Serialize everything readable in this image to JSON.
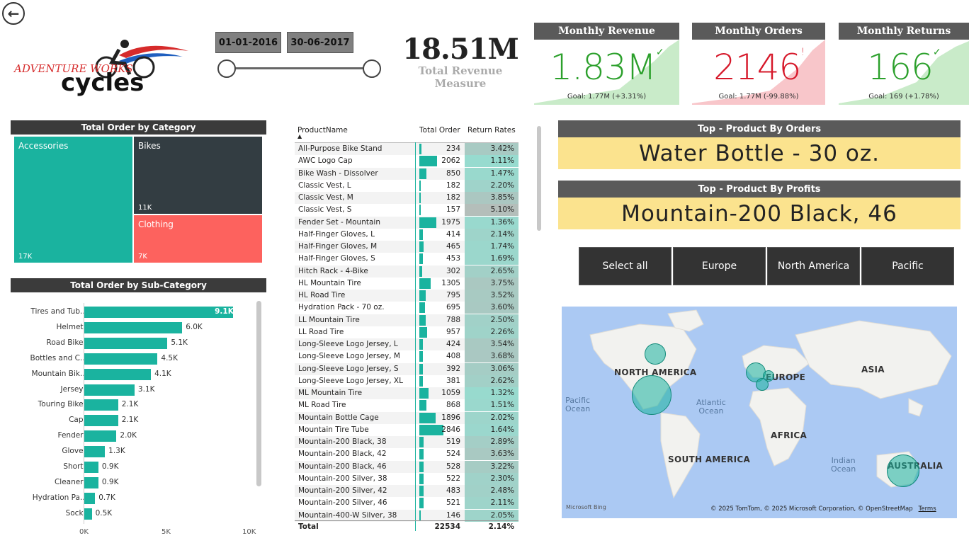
{
  "dates": {
    "start": "01-01-2016",
    "end": "30-06-2017"
  },
  "logo": {
    "line1": "ADVENTURE WORKS",
    "line2": "cycles"
  },
  "total_revenue": {
    "value": "18.51M",
    "label": "Total Revenue Measure"
  },
  "kpis": [
    {
      "title": "Monthly Revenue",
      "value": "1.83M",
      "mark": "✓",
      "goal": "Goal: 1.77M (+3.31%)",
      "color": "#2ca02c",
      "bg": "#c9ebc9"
    },
    {
      "title": "Monthly Orders",
      "value": "2146",
      "mark": "!",
      "goal": "Goal: 1.77M (-99.88%)",
      "color": "#d6182a",
      "bg": "#f8c6ca"
    },
    {
      "title": "Monthly Returns",
      "value": "166",
      "mark": "✓",
      "goal": "Goal: 169 (+1.78%)",
      "color": "#2ca02c",
      "bg": "#c9ebc9"
    }
  ],
  "category": {
    "title": "Total Order by Category",
    "items": [
      {
        "label": "Accessories",
        "value": "17K",
        "color": "#1ab39f"
      },
      {
        "label": "Bikes",
        "value": "11K",
        "color": "#333d42"
      },
      {
        "label": "Clothing",
        "value": "7K",
        "color": "#fd625e"
      }
    ]
  },
  "subcategory": {
    "title": "Total Order by Sub-Category",
    "axis": [
      "0K",
      "5K",
      "10K"
    ],
    "max": 10000,
    "items": [
      {
        "label": "Tires and Tub...",
        "value": 9100,
        "display": "9.1K"
      },
      {
        "label": "Helmets",
        "value": 6000,
        "display": "6.0K"
      },
      {
        "label": "Road Bikes",
        "value": 5100,
        "display": "5.1K"
      },
      {
        "label": "Bottles and C...",
        "value": 4500,
        "display": "4.5K"
      },
      {
        "label": "Mountain Bik...",
        "value": 4100,
        "display": "4.1K"
      },
      {
        "label": "Jerseys",
        "value": 3100,
        "display": "3.1K"
      },
      {
        "label": "Touring Bikes",
        "value": 2100,
        "display": "2.1K"
      },
      {
        "label": "Caps",
        "value": 2100,
        "display": "2.1K"
      },
      {
        "label": "Fenders",
        "value": 2000,
        "display": "2.0K"
      },
      {
        "label": "Gloves",
        "value": 1300,
        "display": "1.3K"
      },
      {
        "label": "Shorts",
        "value": 900,
        "display": "0.9K"
      },
      {
        "label": "Cleaners",
        "value": 900,
        "display": "0.9K"
      },
      {
        "label": "Hydration Pa...",
        "value": 700,
        "display": "0.7K"
      },
      {
        "label": "Socks",
        "value": 500,
        "display": "0.5K"
      }
    ]
  },
  "table": {
    "headers": [
      "ProductName",
      "Total Order",
      "Return Rates"
    ],
    "rows": [
      [
        "All-Purpose Bike Stand",
        "234",
        "3.42%"
      ],
      [
        "AWC Logo Cap",
        "2062",
        "1.11%"
      ],
      [
        "Bike Wash - Dissolver",
        "850",
        "1.47%"
      ],
      [
        "Classic Vest, L",
        "182",
        "2.20%"
      ],
      [
        "Classic Vest, M",
        "182",
        "3.85%"
      ],
      [
        "Classic Vest, S",
        "157",
        "5.10%"
      ],
      [
        "Fender Set - Mountain",
        "1975",
        "1.36%"
      ],
      [
        "Half-Finger Gloves, L",
        "414",
        "2.14%"
      ],
      [
        "Half-Finger Gloves, M",
        "465",
        "1.74%"
      ],
      [
        "Half-Finger Gloves, S",
        "453",
        "1.69%"
      ],
      [
        "Hitch Rack - 4-Bike",
        "302",
        "2.65%"
      ],
      [
        "HL Mountain Tire",
        "1305",
        "3.75%"
      ],
      [
        "HL Road Tire",
        "795",
        "3.52%"
      ],
      [
        "Hydration Pack - 70 oz.",
        "695",
        "3.60%"
      ],
      [
        "LL Mountain Tire",
        "788",
        "2.50%"
      ],
      [
        "LL Road Tire",
        "957",
        "2.26%"
      ],
      [
        "Long-Sleeve Logo Jersey, L",
        "424",
        "3.54%"
      ],
      [
        "Long-Sleeve Logo Jersey, M",
        "408",
        "3.68%"
      ],
      [
        "Long-Sleeve Logo Jersey, S",
        "392",
        "3.06%"
      ],
      [
        "Long-Sleeve Logo Jersey, XL",
        "381",
        "2.62%"
      ],
      [
        "ML Mountain Tire",
        "1059",
        "1.32%"
      ],
      [
        "ML Road Tire",
        "868",
        "1.51%"
      ],
      [
        "Mountain Bottle Cage",
        "1896",
        "2.02%"
      ],
      [
        "Mountain Tire Tube",
        "2846",
        "1.64%"
      ],
      [
        "Mountain-200 Black, 38",
        "519",
        "2.89%"
      ],
      [
        "Mountain-200 Black, 42",
        "524",
        "3.63%"
      ],
      [
        "Mountain-200 Black, 46",
        "528",
        "3.22%"
      ],
      [
        "Mountain-200 Silver, 38",
        "522",
        "2.30%"
      ],
      [
        "Mountain-200 Silver, 42",
        "483",
        "2.48%"
      ],
      [
        "Mountain-200 Silver, 46",
        "521",
        "2.11%"
      ],
      [
        "Mountain-400-W Silver, 38",
        "146",
        "2.05%"
      ]
    ],
    "total": [
      "Total",
      "22534",
      "2.14%"
    ]
  },
  "top_orders": {
    "title": "Top - Product By Orders",
    "value": "Water Bottle - 30 oz."
  },
  "top_profits": {
    "title": "Top - Product By Profits",
    "value": "Mountain-200 Black, 46"
  },
  "regions": [
    "Select all",
    "Europe",
    "North America",
    "Pacific"
  ],
  "map": {
    "continents": [
      "NORTH AMERICA",
      "EUROPE",
      "ASIA",
      "AFRICA",
      "SOUTH AMERICA",
      "AUSTRALIA"
    ],
    "oceans": [
      "Pacific\nOcean",
      "Atlantic\nOcean",
      "Indian\nOcean"
    ],
    "brand": "Microsoft Bing",
    "credit": "© 2025 TomTom, © 2025 Microsoft Corporation, © OpenStreetMap",
    "terms": "Terms"
  }
}
